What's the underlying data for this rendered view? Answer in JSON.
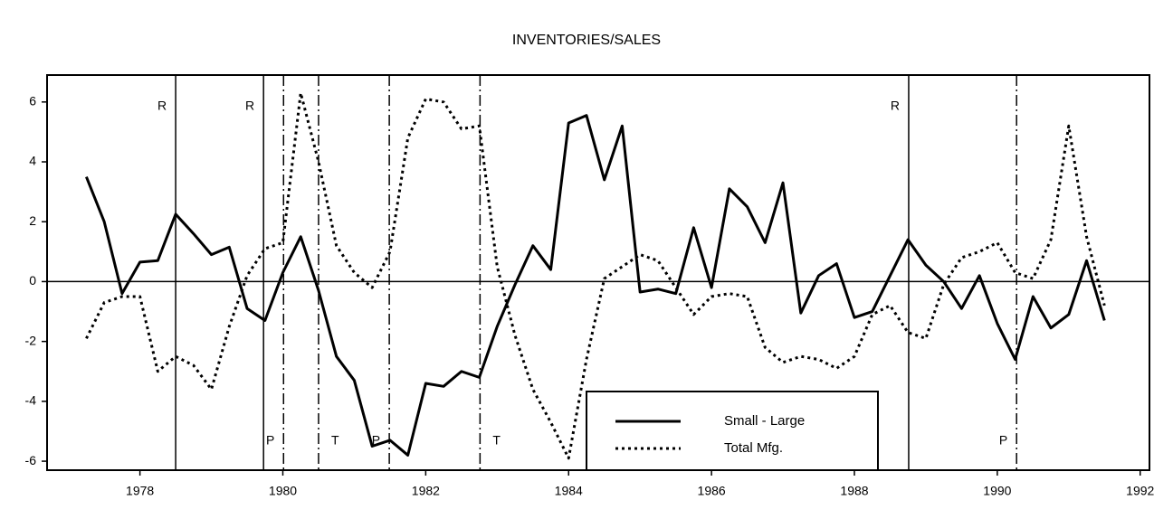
{
  "chart_data": {
    "type": "line",
    "title": "INVENTORIES/SALES",
    "x": [
      1977.25,
      1977.5,
      1977.75,
      1978,
      1978.25,
      1978.5,
      1978.75,
      1979,
      1979.25,
      1979.5,
      1979.75,
      1980,
      1980.25,
      1980.5,
      1980.75,
      1981,
      1981.25,
      1981.5,
      1981.75,
      1982,
      1982.25,
      1982.5,
      1982.75,
      1983,
      1983.25,
      1983.5,
      1983.75,
      1984,
      1984.25,
      1984.5,
      1984.75,
      1985,
      1985.25,
      1985.5,
      1985.75,
      1986,
      1986.25,
      1986.5,
      1986.75,
      1987,
      1987.25,
      1987.5,
      1987.75,
      1988,
      1988.25,
      1988.5,
      1988.75,
      1989,
      1989.25,
      1989.5,
      1989.75,
      1990,
      1990.25,
      1990.5,
      1990.75,
      1991,
      1991.25,
      1991.5
    ],
    "series": [
      {
        "name": "Small - Large",
        "color": "#000000",
        "style": "solid",
        "values": [
          3.5,
          2.0,
          -0.4,
          0.65,
          0.7,
          2.25,
          1.6,
          0.9,
          1.15,
          -0.9,
          -1.3,
          0.3,
          1.5,
          -0.3,
          -2.5,
          -3.3,
          -5.5,
          -5.3,
          -5.8,
          -3.4,
          -3.5,
          -3.0,
          -3.2,
          -1.5,
          -0.1,
          1.2,
          0.4,
          5.3,
          5.55,
          3.4,
          5.2,
          -0.35,
          -0.25,
          -0.4,
          1.8,
          -0.2,
          3.1,
          2.5,
          1.3,
          3.3,
          -1.05,
          0.2,
          0.6,
          -1.2,
          -1.0,
          0.2,
          1.4,
          0.55,
          0.0,
          -0.9,
          0.2,
          -1.4,
          -2.6,
          -0.5,
          -1.55,
          -1.1,
          0.7,
          -1.3
        ]
      },
      {
        "name": "Total Mfg.",
        "color": "#000000",
        "style": "dotted",
        "values": [
          -1.9,
          -0.7,
          -0.5,
          -0.5,
          -3.0,
          -2.5,
          -2.8,
          -3.6,
          -1.5,
          0.2,
          1.1,
          1.3,
          6.3,
          4.0,
          1.2,
          0.3,
          -0.2,
          1.0,
          4.8,
          6.1,
          6.0,
          5.1,
          5.2,
          0.5,
          -1.8,
          -3.6,
          -4.7,
          -5.9,
          -2.6,
          0.1,
          0.5,
          0.9,
          0.7,
          -0.2,
          -1.1,
          -0.5,
          -0.4,
          -0.5,
          -2.2,
          -2.7,
          -2.5,
          -2.6,
          -2.9,
          -2.5,
          -1.1,
          -0.8,
          -1.7,
          -1.9,
          -0.1,
          0.8,
          1.0,
          1.3,
          0.3,
          0.1,
          1.4,
          5.2,
          1.5,
          -0.8
        ]
      }
    ],
    "annotations": [
      {
        "x": 1978.5,
        "label": "R",
        "style": "solid"
      },
      {
        "x": 1979.73,
        "label": "R",
        "style": "solid"
      },
      {
        "x": 1980.01,
        "label": "P",
        "style": "dashdot"
      },
      {
        "x": 1980.5,
        "label": "T",
        "style": "dashdot"
      },
      {
        "x": 1981.49,
        "label": "P",
        "style": "dashdot"
      },
      {
        "x": 1982.76,
        "label": "T",
        "style": "dashdot"
      },
      {
        "x": 1988.76,
        "label": "R",
        "style": "solid"
      },
      {
        "x": 1990.27,
        "label": "P",
        "style": "dashdot"
      }
    ],
    "xlim": [
      1976.7,
      1992.13
    ],
    "xticks": [
      1978,
      1980,
      1982,
      1984,
      1986,
      1988,
      1990,
      1992
    ],
    "ylim": [
      -6.3,
      6.9
    ],
    "yticks": [
      -6,
      -4,
      -2,
      0,
      2,
      4,
      6
    ]
  }
}
